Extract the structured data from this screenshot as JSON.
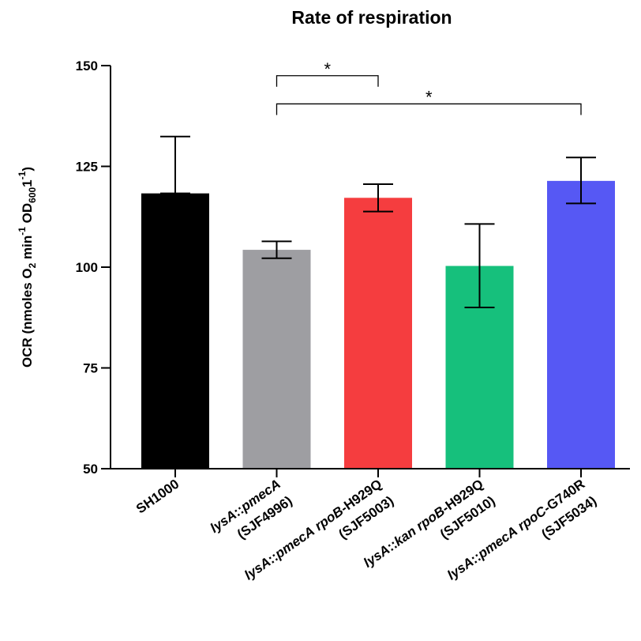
{
  "chart_data": {
    "type": "bar",
    "title": "Rate of respiration",
    "ylabel": {
      "text": "OCR (nmoles O2 min-1 OD600 1-1)",
      "parts": [
        {
          "t": "OCR (nmoles O"
        },
        {
          "t": "2",
          "sub": true
        },
        {
          "t": " min"
        },
        {
          "t": "-1",
          "sup": true
        },
        {
          "t": " OD"
        },
        {
          "t": "600",
          "sub": true
        },
        {
          "t": "1"
        },
        {
          "t": "-1",
          "sup": true
        },
        {
          "t": ")"
        }
      ]
    },
    "xlabel": "",
    "ylim": [
      50,
      150
    ],
    "yticks": [
      50,
      75,
      100,
      125,
      150
    ],
    "grid": false,
    "categories": [
      {
        "lines": [
          [
            {
              "t": "SH1000"
            }
          ]
        ]
      },
      {
        "lines": [
          [
            {
              "t": "lysA",
              "i": true
            },
            {
              "t": "::"
            },
            {
              "t": "pmecA",
              "i": true
            }
          ],
          [
            {
              "t": "(SJF4996)"
            }
          ]
        ]
      },
      {
        "lines": [
          [
            {
              "t": "lysA",
              "i": true
            },
            {
              "t": "::"
            },
            {
              "t": "pmecA",
              "i": true
            },
            {
              "t": " "
            },
            {
              "t": "rpoB",
              "i": true
            },
            {
              "t": "-H929Q"
            }
          ],
          [
            {
              "t": "(SJF5003)"
            }
          ]
        ]
      },
      {
        "lines": [
          [
            {
              "t": "lysA",
              "i": true
            },
            {
              "t": "::"
            },
            {
              "t": "kan",
              "i": true
            },
            {
              "t": " "
            },
            {
              "t": "rpoB",
              "i": true
            },
            {
              "t": "-H929Q"
            }
          ],
          [
            {
              "t": "(SJF5010)"
            }
          ]
        ]
      },
      {
        "lines": [
          [
            {
              "t": "lysA",
              "i": true
            },
            {
              "t": "::"
            },
            {
              "t": "pmecA",
              "i": true
            },
            {
              "t": " "
            },
            {
              "t": "rpoC",
              "i": true
            },
            {
              "t": "-G740R"
            }
          ],
          [
            {
              "t": "(SJF5034)"
            }
          ]
        ]
      }
    ],
    "values": [
      118.3,
      104.3,
      117.2,
      100.3,
      121.4
    ],
    "error_upper": [
      132.4,
      106.4,
      120.6,
      110.7,
      127.2
    ],
    "error_lower": [
      118.3,
      102.2,
      113.8,
      90.0,
      115.8
    ],
    "colors": [
      "#000000",
      "#9e9ea2",
      "#f53d3f",
      "#16c07c",
      "#5658f4"
    ],
    "significance": [
      {
        "from": 1,
        "to": 2,
        "y": 147.5,
        "label": "*"
      },
      {
        "from": 1,
        "to": 4,
        "y": 140.5,
        "label": "*"
      }
    ]
  }
}
